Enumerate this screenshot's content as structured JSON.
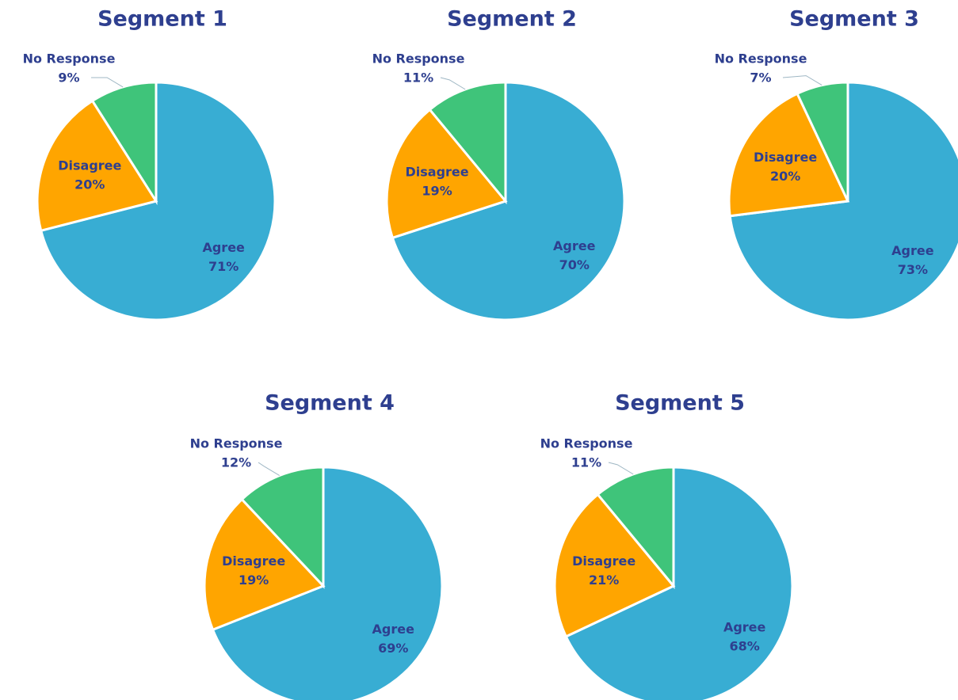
{
  "chart_data": [
    {
      "type": "pie",
      "title": "Segment 1",
      "categories": [
        "Agree",
        "Disagree",
        "No Response"
      ],
      "values": [
        71,
        20,
        9
      ],
      "value_labels": [
        "71%",
        "20%",
        "9%"
      ],
      "colors": [
        "#38ADD3",
        "#FFA500",
        "#3FC47A"
      ]
    },
    {
      "type": "pie",
      "title": "Segment 2",
      "categories": [
        "Agree",
        "Disagree",
        "No Response"
      ],
      "values": [
        70,
        19,
        11
      ],
      "value_labels": [
        "70%",
        "19%",
        "11%"
      ],
      "colors": [
        "#38ADD3",
        "#FFA500",
        "#3FC47A"
      ]
    },
    {
      "type": "pie",
      "title": "Segment 3",
      "categories": [
        "Agree",
        "Disagree",
        "No Response"
      ],
      "values": [
        73,
        20,
        7
      ],
      "value_labels": [
        "73%",
        "20%",
        "7%"
      ],
      "colors": [
        "#38ADD3",
        "#FFA500",
        "#3FC47A"
      ]
    },
    {
      "type": "pie",
      "title": "Segment 4",
      "categories": [
        "Agree",
        "Disagree",
        "No Response"
      ],
      "values": [
        69,
        19,
        12
      ],
      "value_labels": [
        "69%",
        "19%",
        "12%"
      ],
      "colors": [
        "#38ADD3",
        "#FFA500",
        "#3FC47A"
      ]
    },
    {
      "type": "pie",
      "title": "Segment 5",
      "categories": [
        "Agree",
        "Disagree",
        "No Response"
      ],
      "values": [
        68,
        21,
        11
      ],
      "value_labels": [
        "68%",
        "21%",
        "11%"
      ],
      "colors": [
        "#38ADD3",
        "#FFA500",
        "#3FC47A"
      ]
    }
  ]
}
